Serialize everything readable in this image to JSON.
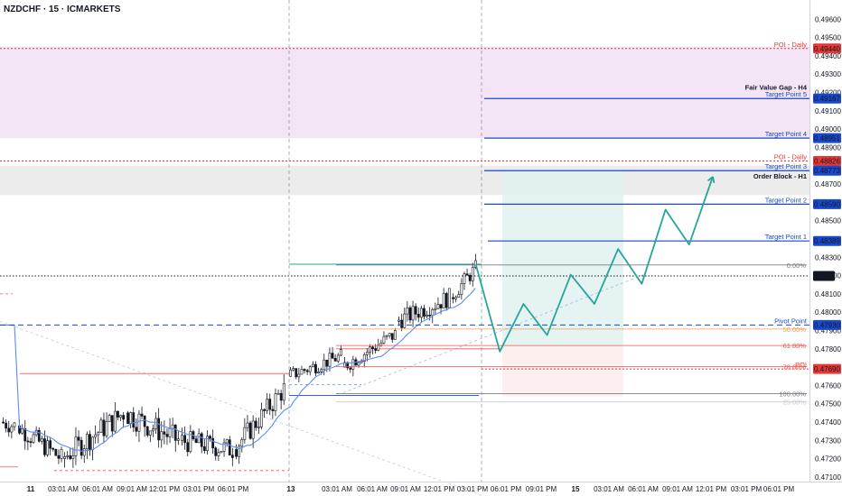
{
  "header": {
    "title": "NZDCHF · 15 · ICMARKETS"
  },
  "colors": {
    "up": "#ffffff",
    "down": "#131722",
    "ma": "#5b8def",
    "target": "#1848cc",
    "poi_red": "#e53935",
    "zone_pink": "#f3e5f5",
    "zone_grey": "#ececec",
    "long_green": "#e0f2f1",
    "long_red": "#fdecec",
    "path": "#26a69a"
  },
  "chart_data": {
    "type": "candlestick",
    "title": "NZDCHF · 15 · ICMARKETS",
    "y_axis": {
      "range": [
        0.47075,
        0.49705
      ],
      "ticks": [
        "0.49600",
        "0.49500",
        "0.49400",
        "0.49300",
        "0.49200",
        "0.49100",
        "0.49000",
        "0.48900",
        "0.48800",
        "0.48700",
        "0.48600",
        "0.48500",
        "0.48400",
        "0.48300",
        "0.48200",
        "0.48100",
        "0.48000",
        "0.47900",
        "0.47800",
        "0.47700",
        "0.47600",
        "0.47500",
        "0.47400",
        "0.47300",
        "0.47200",
        "0.47100"
      ]
    },
    "x_axis": {
      "ticks": [
        "11",
        "03:01 AM",
        "06:01 AM",
        "09:01 AM",
        "12:01 PM",
        "03:01 PM",
        "06:01 PM",
        "13",
        "03:01 AM",
        "06:01 AM",
        "09:01 AM",
        "12:01 PM",
        "03:01 PM",
        "06:01 PM",
        "09:01 PM",
        "15",
        "03:01 AM",
        "06:01 AM",
        "09:01 AM",
        "12:01 PM",
        "03:01 PM",
        "06:01 PM"
      ]
    },
    "zones": [
      {
        "label": "POI - Daily",
        "top": 0.4945,
        "bottom": 0.4895,
        "color": "#f3e5f5"
      },
      {
        "label": "Order Block - H1",
        "top": 0.488,
        "bottom": 0.4864,
        "color": "#ececec"
      }
    ],
    "price_levels": [
      {
        "label": "POI - Daily",
        "value": "0.49440",
        "price": 0.4944,
        "kind": "poi"
      },
      {
        "label": "Fair Value Gap - H4",
        "value": "",
        "price": 0.49205,
        "kind": "note"
      },
      {
        "label": "Target Point 5",
        "value": "0.49167",
        "price": 0.49167,
        "kind": "target"
      },
      {
        "label": "Target Point 4",
        "value": "0.48951",
        "price": 0.48951,
        "kind": "target"
      },
      {
        "label": "POI - Daily",
        "value": "0.48826",
        "price": 0.48826,
        "kind": "poi"
      },
      {
        "label": "Target Point 3",
        "value": "0.48773",
        "price": 0.48773,
        "kind": "target"
      },
      {
        "label": "Order Block - H1",
        "value": "",
        "price": 0.4872,
        "kind": "ob"
      },
      {
        "label": "Target Point 2",
        "value": "0.48590",
        "price": 0.4859,
        "kind": "target"
      },
      {
        "label": "Target Point 1",
        "value": "0.48389",
        "price": 0.48389,
        "kind": "target"
      },
      {
        "label": "Pivot Point",
        "value": "0.47930",
        "price": 0.4793,
        "kind": "pivot"
      },
      {
        "label": "POI",
        "value": "0.47690",
        "price": 0.4769,
        "kind": "poi"
      }
    ],
    "current_price": {
      "value": "02:05",
      "price": 0.48198
    },
    "fib_levels": [
      {
        "label": "0.00%",
        "price": 0.48258
      },
      {
        "label": "50.00%",
        "price": 0.47908
      },
      {
        "label": "61.80%",
        "price": 0.47818
      },
      {
        "label": "78.60%",
        "price": 0.47703
      },
      {
        "label": "100.00%",
        "price": 0.47555
      },
      {
        "label": "25.00%",
        "price": 0.4751
      }
    ],
    "projected_path": [
      {
        "t": 0,
        "price": 0.48255
      },
      {
        "t": 1,
        "price": 0.47785
      },
      {
        "t": 2,
        "price": 0.48045
      },
      {
        "t": 3,
        "price": 0.47875
      },
      {
        "t": 4,
        "price": 0.48205
      },
      {
        "t": 5,
        "price": 0.48045
      },
      {
        "t": 6,
        "price": 0.48345
      },
      {
        "t": 7,
        "price": 0.48155
      },
      {
        "t": 8,
        "price": 0.4856
      },
      {
        "t": 9,
        "price": 0.4837
      },
      {
        "t": 10,
        "price": 0.4874
      }
    ]
  }
}
